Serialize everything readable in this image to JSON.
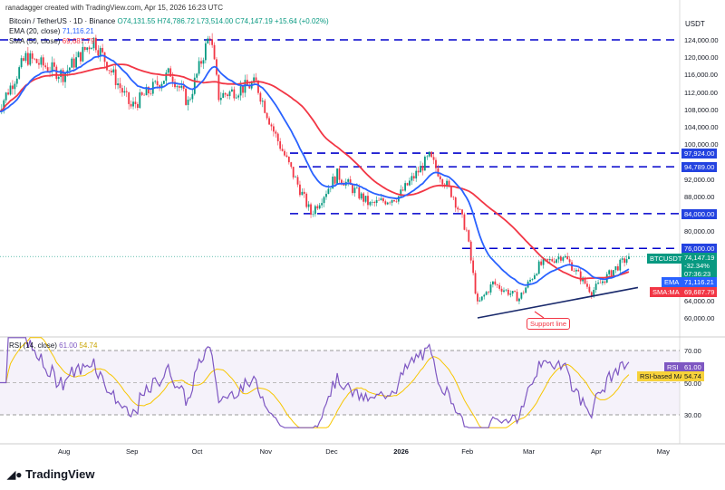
{
  "header": {
    "credit": "ranadagger created with TradingView.com, Apr 15, 2026 16:23 UTC",
    "symbol": "Bitcoin / TetherUS · 1D · Binance",
    "o": "O74,131.55",
    "h": "H74,786.72",
    "l": "L73,514.00",
    "c": "C74,147.19",
    "chg": "+15.64 (+0.02%)",
    "ema_label": "EMA (20, close)",
    "ema_value": "71,116.21",
    "sma_label": "SMA (50, close)",
    "sma_value": "69,687.79"
  },
  "currency": "USDT",
  "colors": {
    "up": "#089981",
    "down": "#f23645",
    "ema": "#2962ff",
    "sma": "#f23645",
    "rsi": "#7e57c2",
    "rsi_ma": "#f7c600",
    "levels": "#0000cc"
  },
  "chart_data": [
    {
      "type": "candlestick",
      "symbol": "BTCUSDT",
      "timeframe": "1D",
      "x_ticks": [
        "Aug",
        "Sep",
        "Oct",
        "Nov",
        "Dec",
        "2026",
        "Feb",
        "Mar",
        "Apr",
        "May"
      ],
      "y_ticks": [
        124000,
        120000,
        116000,
        112000,
        108000,
        104000,
        100000,
        92000,
        88000,
        80000,
        64000,
        60000
      ],
      "y_tick_labels": [
        "124,000.00",
        "120,000.00",
        "116,000.00",
        "112,000.00",
        "108,000.00",
        "104,000.00",
        "100,000.00",
        "92,000.00",
        "88,000.00",
        "80,000.00",
        "64,000.00",
        "60,000.00"
      ],
      "ylim": [
        58000,
        128000
      ],
      "approx_closes": [
        [
          "2025-07-01",
          107500
        ],
        [
          "2025-07-14",
          120000
        ],
        [
          "2025-07-31",
          116000
        ],
        [
          "2025-08-14",
          124000
        ],
        [
          "2025-08-31",
          108500
        ],
        [
          "2025-09-18",
          116500
        ],
        [
          "2025-09-26",
          109500
        ],
        [
          "2025-10-06",
          125500
        ],
        [
          "2025-10-10",
          111000
        ],
        [
          "2025-10-27",
          114000
        ],
        [
          "2025-11-04",
          103000
        ],
        [
          "2025-11-21",
          84000
        ],
        [
          "2025-12-03",
          93000
        ],
        [
          "2025-12-18",
          86000
        ],
        [
          "2025-12-31",
          88000
        ],
        [
          "2026-01-14",
          97000
        ],
        [
          "2026-01-25",
          88000
        ],
        [
          "2026-01-31",
          80000
        ],
        [
          "2026-02-05",
          63000
        ],
        [
          "2026-02-12",
          68000
        ],
        [
          "2026-02-24",
          64500
        ],
        [
          "2026-03-05",
          72000
        ],
        [
          "2026-03-16",
          74500
        ],
        [
          "2026-03-29",
          66000
        ],
        [
          "2026-04-08",
          71000
        ],
        [
          "2026-04-15",
          74147.19
        ]
      ],
      "horizontal_levels": [
        {
          "value": 124000
        },
        {
          "value": 97924,
          "label": "97,924.00"
        },
        {
          "value": 94789,
          "label": "94,789.00"
        },
        {
          "value": 84000,
          "label": "84,000.00"
        },
        {
          "value": 76000,
          "label": "76,000.00"
        }
      ],
      "support_line": {
        "from": [
          "2026-02-05",
          60000
        ],
        "to": [
          "2026-04-15",
          67000
        ],
        "label": "Support line"
      },
      "last_price": {
        "symbol": "BTCUSDT",
        "price": "74,147.19",
        "change": "-32.34%",
        "countdown": "07:36:23"
      },
      "ema": {
        "name": "EMA",
        "value": "71,116.21"
      },
      "sma": {
        "name": "SMA:MA",
        "value": "69,687.79"
      }
    },
    {
      "type": "line",
      "title": "RSI (14, close)",
      "rsi_value": "61.00",
      "rsi_ma_value": "54.74",
      "series": [
        {
          "name": "RSI",
          "last": 61.0
        },
        {
          "name": "RSI-based MA",
          "last": 54.74
        }
      ],
      "y_ticks": [
        70,
        50,
        30
      ],
      "y_tick_labels": [
        "70.00",
        "50.00",
        "30.00"
      ],
      "ylim": [
        25,
        75
      ]
    }
  ],
  "rsi_header": {
    "label": "RSI (14, close)",
    "v1": "61.00",
    "v2": "54.74"
  },
  "footer": {
    "brand": "TradingView"
  }
}
